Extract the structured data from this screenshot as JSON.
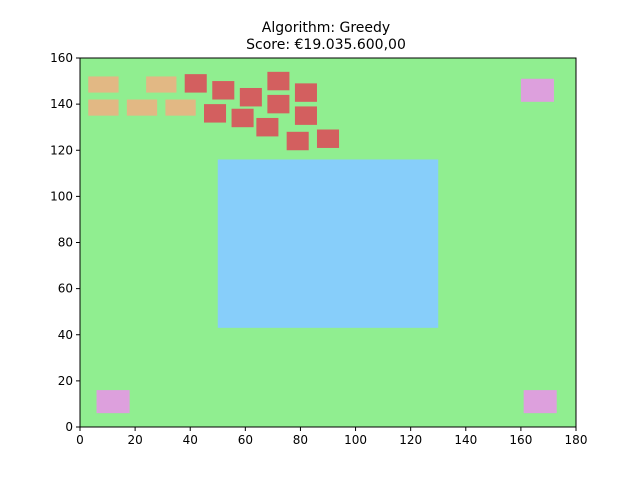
{
  "chart_data": {
    "type": "layout",
    "title_lines": [
      "Algorithm: Greedy",
      "Score: €19.035.600,00"
    ],
    "xlim": [
      0,
      180
    ],
    "ylim": [
      0,
      160
    ],
    "xticks": [
      0,
      20,
      40,
      60,
      80,
      100,
      120,
      140,
      160,
      180
    ],
    "yticks": [
      0,
      20,
      40,
      60,
      80,
      100,
      120,
      140,
      160
    ],
    "grid": false,
    "colors": {
      "background": "#90EE90",
      "main_area": "#87CEFA",
      "corner": "#DDA0DD",
      "tan": "#E2B884",
      "red": "#D35F5F"
    },
    "main_area": {
      "x": [
        50,
        130
      ],
      "y": [
        43,
        116
      ]
    },
    "corners": [
      {
        "x": [
          6,
          18
        ],
        "y": [
          6,
          16
        ]
      },
      {
        "x": [
          161,
          173
        ],
        "y": [
          6,
          16
        ]
      },
      {
        "x": [
          160,
          172
        ],
        "y": [
          141,
          151
        ]
      }
    ],
    "tan_boxes": [
      {
        "x": [
          3,
          14
        ],
        "y": [
          145,
          152
        ]
      },
      {
        "x": [
          24,
          35
        ],
        "y": [
          145,
          152
        ]
      },
      {
        "x": [
          3,
          14
        ],
        "y": [
          135,
          142
        ]
      },
      {
        "x": [
          17,
          28
        ],
        "y": [
          135,
          142
        ]
      },
      {
        "x": [
          31,
          42
        ],
        "y": [
          135,
          142
        ]
      }
    ],
    "red_boxes": [
      {
        "x": [
          38,
          46
        ],
        "y": [
          145,
          153
        ]
      },
      {
        "x": [
          48,
          56
        ],
        "y": [
          142,
          150
        ]
      },
      {
        "x": [
          58,
          66
        ],
        "y": [
          139,
          147
        ]
      },
      {
        "x": [
          68,
          76
        ],
        "y": [
          146,
          154
        ]
      },
      {
        "x": [
          78,
          86
        ],
        "y": [
          141,
          149
        ]
      },
      {
        "x": [
          45,
          53
        ],
        "y": [
          132,
          140
        ]
      },
      {
        "x": [
          55,
          63
        ],
        "y": [
          130,
          138
        ]
      },
      {
        "x": [
          64,
          72
        ],
        "y": [
          126,
          134
        ]
      },
      {
        "x": [
          68,
          76
        ],
        "y": [
          136,
          144
        ]
      },
      {
        "x": [
          78,
          86
        ],
        "y": [
          131,
          139
        ]
      },
      {
        "x": [
          75,
          83
        ],
        "y": [
          120,
          128
        ]
      },
      {
        "x": [
          86,
          94
        ],
        "y": [
          121,
          129
        ]
      }
    ]
  }
}
